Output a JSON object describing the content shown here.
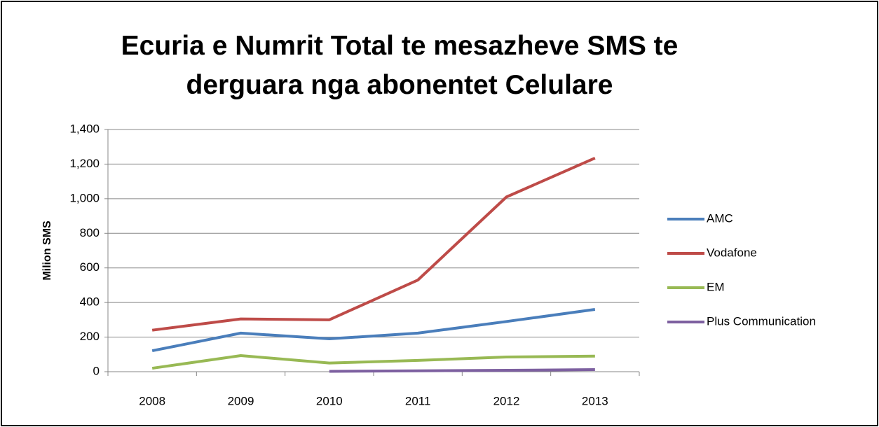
{
  "chart_data": {
    "type": "line",
    "title": "Ecuria e Numrit Total te mesazheve SMS te derguara nga abonentet Celulare",
    "ylabel": "Milion SMS",
    "categories": [
      "2008",
      "2009",
      "2010",
      "2011",
      "2012",
      "2013"
    ],
    "series": [
      {
        "name": "AMC",
        "color": "#4a7ebb",
        "values": [
          121,
          223,
          190,
          223,
          290,
          360
        ]
      },
      {
        "name": "Vodafone",
        "color": "#be4b48",
        "values": [
          240,
          305,
          300,
          530,
          1010,
          1235
        ]
      },
      {
        "name": "EM",
        "color": "#98b954",
        "values": [
          20,
          93,
          50,
          65,
          85,
          90
        ]
      },
      {
        "name": "Plus Communication",
        "color": "#7d60a0",
        "values": [
          null,
          null,
          2,
          5,
          8,
          12
        ]
      }
    ],
    "ylim": [
      0,
      1400
    ],
    "yticks": [
      0,
      200,
      400,
      600,
      800,
      {
        "value": 1000,
        "label": "1,000"
      },
      {
        "value": 1200,
        "label": "1,200"
      },
      {
        "value": 1400,
        "label": "1,400"
      }
    ],
    "grid": true,
    "legend": "right"
  }
}
